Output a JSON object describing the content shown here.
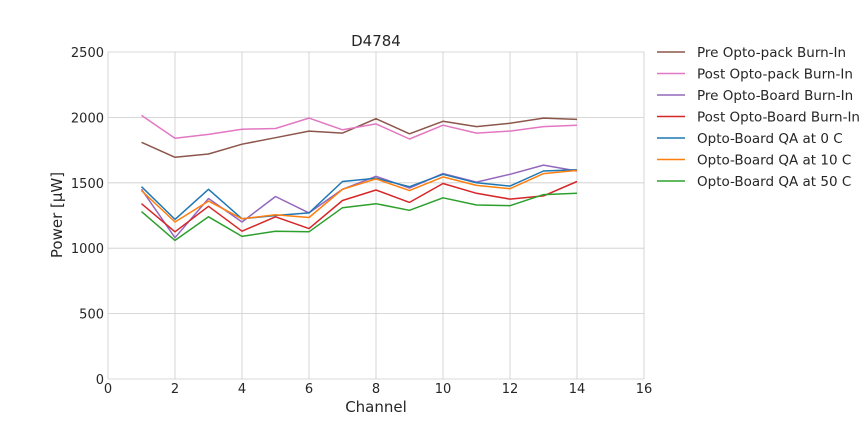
{
  "chart_data": {
    "type": "line",
    "title": "D4784",
    "xlabel": "Channel",
    "ylabel": "Power [μW]",
    "xlim": [
      0,
      16
    ],
    "ylim": [
      0,
      2500
    ],
    "xticks": [
      0,
      2,
      4,
      6,
      8,
      10,
      12,
      14,
      16
    ],
    "yticks": [
      0,
      500,
      1000,
      1500,
      2000,
      2500
    ],
    "grid": true,
    "legend_position": "outside-right",
    "x": [
      1,
      2,
      3,
      4,
      5,
      6,
      7,
      8,
      9,
      10,
      11,
      12,
      13,
      14
    ],
    "series": [
      {
        "name": "Pre Opto-pack Burn-In",
        "color": "#8c564b",
        "values": [
          1810,
          1695,
          1720,
          1795,
          1845,
          1895,
          1880,
          1990,
          1875,
          1970,
          1930,
          1955,
          1995,
          1985
        ]
      },
      {
        "name": "Post Opto-pack Burn-In",
        "color": "#e377c2",
        "values": [
          2015,
          1840,
          1870,
          1910,
          1915,
          1995,
          1905,
          1950,
          1835,
          1940,
          1880,
          1895,
          1930,
          1940
        ]
      },
      {
        "name": "Pre Opto-Board Burn-In",
        "color": "#9467bd",
        "values": [
          1450,
          1080,
          1380,
          1200,
          1395,
          1270,
          1450,
          1550,
          1460,
          1570,
          1505,
          1565,
          1635,
          1590
        ]
      },
      {
        "name": "Post Opto-Board Burn-In",
        "color": "#d62728",
        "values": [
          1340,
          1125,
          1320,
          1130,
          1240,
          1150,
          1365,
          1445,
          1350,
          1495,
          1420,
          1375,
          1400,
          1510
        ]
      },
      {
        "name": "Opto-Board QA at 0 C",
        "color": "#1f77b4",
        "values": [
          1470,
          1220,
          1450,
          1225,
          1250,
          1270,
          1510,
          1535,
          1470,
          1565,
          1500,
          1475,
          1590,
          1600
        ]
      },
      {
        "name": "Opto-Board QA at 10 C",
        "color": "#ff7f0e",
        "values": [
          1440,
          1200,
          1360,
          1225,
          1255,
          1235,
          1450,
          1530,
          1440,
          1545,
          1480,
          1455,
          1570,
          1595
        ]
      },
      {
        "name": "Opto-Board QA at 50 C",
        "color": "#2ca02c",
        "values": [
          1280,
          1060,
          1240,
          1090,
          1130,
          1125,
          1310,
          1340,
          1290,
          1385,
          1330,
          1325,
          1410,
          1420
        ]
      }
    ]
  }
}
